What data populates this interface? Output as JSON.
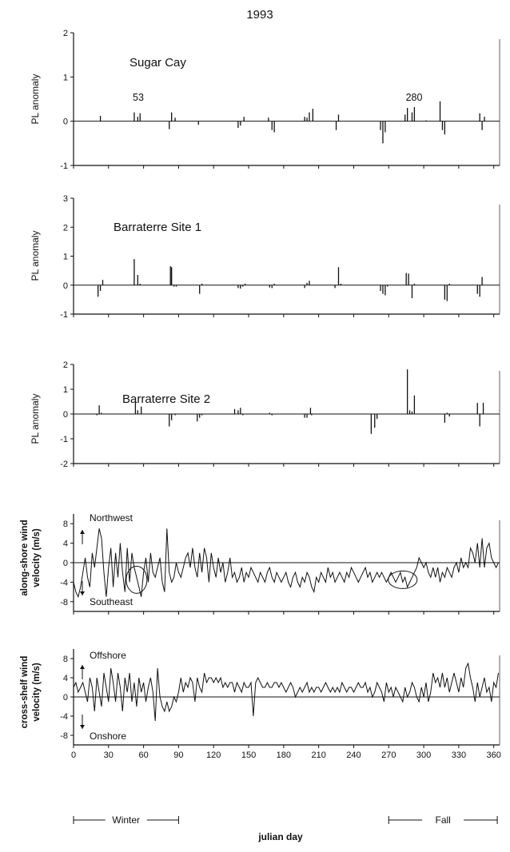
{
  "figure": {
    "title": "1993",
    "x_axis_label": "julian day",
    "x_ticks": [
      0,
      30,
      60,
      90,
      120,
      150,
      180,
      210,
      240,
      270,
      300,
      330,
      360
    ],
    "seasons": [
      {
        "label": "Winter",
        "from": 0,
        "to": 90
      },
      {
        "label": "Fall",
        "from": 270,
        "to": 363
      }
    ]
  },
  "chart_data": [
    {
      "type": "bar",
      "title": "Sugar Cay",
      "ylabel": "PL anomaly",
      "ylim": [
        -1,
        2
      ],
      "yticks": [
        -1,
        0,
        1,
        2
      ],
      "xlim": [
        0,
        365
      ],
      "annotations": [
        {
          "text": "53",
          "x": 53
        },
        {
          "text": "280",
          "x": 288
        }
      ],
      "x": [
        23,
        52,
        55,
        57,
        82,
        84,
        87,
        107,
        141,
        143,
        146,
        167,
        170,
        172,
        198,
        200,
        202,
        205,
        225,
        227,
        263,
        265,
        267,
        284,
        286,
        290,
        292,
        302,
        314,
        316,
        318,
        348,
        350,
        352
      ],
      "values": [
        0.12,
        0.2,
        0.1,
        0.18,
        -0.18,
        0.2,
        0.08,
        -0.08,
        -0.15,
        -0.1,
        0.1,
        0.08,
        -0.2,
        -0.25,
        0.1,
        0.08,
        0.2,
        0.28,
        -0.2,
        0.15,
        -0.2,
        -0.5,
        -0.25,
        0.15,
        0.3,
        0.2,
        0.32,
        0.02,
        0.45,
        -0.2,
        -0.3,
        0.18,
        -0.2,
        0.1
      ]
    },
    {
      "type": "bar",
      "title": "Barraterre Site 1",
      "ylabel": "PL anomaly",
      "ylim": [
        -1,
        3
      ],
      "yticks": [
        -1,
        0,
        1,
        2,
        3
      ],
      "xlim": [
        0,
        365
      ],
      "x": [
        21,
        23,
        25,
        52,
        55,
        57,
        83,
        84,
        86,
        88,
        108,
        110,
        141,
        143,
        145,
        147,
        168,
        170,
        172,
        198,
        200,
        202,
        224,
        227,
        229,
        263,
        265,
        267,
        269,
        285,
        287,
        290,
        292,
        318,
        320,
        322,
        346,
        348,
        350
      ],
      "values": [
        -0.4,
        -0.2,
        0.18,
        0.9,
        0.35,
        0.05,
        0.65,
        0.62,
        -0.05,
        -0.05,
        -0.3,
        0.05,
        -0.1,
        -0.12,
        -0.05,
        0.05,
        -0.08,
        -0.1,
        0.05,
        -0.1,
        0.08,
        0.15,
        -0.1,
        0.62,
        0.05,
        -0.2,
        -0.3,
        -0.35,
        -0.05,
        0.42,
        0.4,
        -0.45,
        0.05,
        -0.5,
        -0.55,
        0.05,
        -0.3,
        -0.4,
        0.28
      ]
    },
    {
      "type": "bar",
      "title": "Barraterre Site 2",
      "ylabel": "PL anomaly",
      "ylim": [
        -2,
        2
      ],
      "yticks": [
        -2,
        -1,
        0,
        1,
        2
      ],
      "xlim": [
        0,
        365
      ],
      "x": [
        20,
        22,
        24,
        53,
        55,
        58,
        82,
        84,
        87,
        106,
        108,
        110,
        138,
        141,
        143,
        145,
        168,
        170,
        198,
        200,
        203,
        204,
        255,
        258,
        260,
        286,
        288,
        290,
        292,
        318,
        320,
        322,
        346,
        348,
        351
      ],
      "values": [
        -0.05,
        0.35,
        0.05,
        0.5,
        0.15,
        0.3,
        -0.5,
        -0.25,
        -0.05,
        -0.3,
        -0.15,
        -0.05,
        0.2,
        0.15,
        0.25,
        -0.05,
        0.05,
        -0.05,
        -0.15,
        -0.15,
        0.25,
        -0.05,
        -0.8,
        -0.55,
        -0.2,
        1.8,
        0.15,
        0.1,
        0.75,
        -0.35,
        0.05,
        -0.1,
        0.45,
        -0.5,
        0.45
      ]
    },
    {
      "type": "line",
      "ylabel_line1": "along-shore wind",
      "ylabel_line2": "velocity (m/s)",
      "ylim": [
        -10,
        10
      ],
      "yticks": [
        -8,
        -4,
        0,
        4,
        8
      ],
      "xlim": [
        0,
        365
      ],
      "upper_label": "Northwest",
      "lower_label": "Southeast",
      "circled_days": [
        54,
        282
      ],
      "x": [
        0,
        2,
        4,
        6,
        8,
        10,
        12,
        14,
        16,
        18,
        20,
        22,
        24,
        26,
        28,
        30,
        32,
        34,
        36,
        38,
        40,
        42,
        44,
        46,
        48,
        50,
        52,
        54,
        56,
        58,
        60,
        62,
        64,
        66,
        68,
        70,
        72,
        74,
        76,
        78,
        80,
        82,
        84,
        86,
        88,
        90,
        92,
        94,
        96,
        98,
        100,
        102,
        104,
        106,
        108,
        110,
        112,
        114,
        116,
        118,
        120,
        122,
        124,
        126,
        128,
        130,
        132,
        134,
        136,
        138,
        140,
        142,
        144,
        146,
        148,
        150,
        152,
        154,
        156,
        158,
        160,
        162,
        164,
        166,
        168,
        170,
        172,
        174,
        176,
        178,
        180,
        182,
        184,
        186,
        188,
        190,
        192,
        194,
        196,
        198,
        200,
        202,
        204,
        206,
        208,
        210,
        212,
        214,
        216,
        218,
        220,
        222,
        224,
        226,
        228,
        230,
        232,
        234,
        236,
        238,
        240,
        242,
        244,
        246,
        248,
        250,
        252,
        254,
        256,
        258,
        260,
        262,
        264,
        266,
        268,
        270,
        272,
        274,
        276,
        278,
        280,
        282,
        284,
        286,
        288,
        290,
        292,
        294,
        296,
        298,
        300,
        302,
        304,
        306,
        308,
        310,
        312,
        314,
        316,
        318,
        320,
        322,
        324,
        326,
        328,
        330,
        332,
        334,
        336,
        338,
        340,
        342,
        344,
        346,
        348,
        350,
        352,
        354,
        356,
        358,
        360,
        362,
        364
      ],
      "values": [
        -4,
        -6,
        -7,
        -5,
        -2,
        1,
        -3,
        -5,
        2,
        -1,
        3,
        7,
        5,
        -2,
        -7,
        -1,
        3,
        -5,
        2,
        -3,
        4,
        -2,
        -6,
        3,
        -4,
        2,
        -1,
        -3,
        -5,
        -7,
        -2,
        1,
        -4,
        2,
        -2,
        -3,
        -1,
        1,
        -4,
        -6,
        7,
        -2,
        -4,
        -3,
        0,
        -2,
        -3,
        -1,
        1,
        2,
        -1,
        3,
        -1,
        -3,
        2,
        -2,
        3,
        1,
        -4,
        2,
        -1,
        -3,
        1,
        -2,
        0,
        -4,
        -2,
        1,
        -3,
        -2,
        -4,
        -3,
        -1,
        -4,
        -2,
        -3,
        -1,
        -2,
        -3,
        -4,
        -2,
        -3,
        -4,
        -2,
        -1,
        -3,
        -4,
        -2,
        -3,
        -4,
        -3,
        -2,
        -4,
        -5,
        -3,
        -2,
        -4,
        -5,
        -3,
        -4,
        -2,
        -3,
        -5,
        -6,
        -3,
        -4,
        -2,
        -3,
        -4,
        -1,
        -3,
        -2,
        -4,
        -3,
        -2,
        -3,
        -4,
        -2,
        -3,
        -1,
        -2,
        -3,
        -4,
        -3,
        -2,
        -1,
        -3,
        -2,
        -4,
        -3,
        -2,
        -3,
        -2,
        -3,
        -4,
        -3,
        -2,
        -3,
        -4,
        -3,
        -2,
        -4,
        -3,
        -5,
        -4,
        -3,
        -2,
        -1,
        1,
        0,
        -1,
        0,
        -2,
        -3,
        -1,
        -3,
        -1,
        -4,
        -2,
        -3,
        -1,
        -2,
        -3,
        -1,
        0,
        -2,
        1,
        -1,
        0,
        -1,
        3,
        2,
        0,
        4,
        -1,
        5,
        -1,
        3,
        4,
        1,
        0,
        -1,
        0
      ]
    },
    {
      "type": "line",
      "ylabel_line1": "cross-shelf wind",
      "ylabel_line2": "velocity (m/s)",
      "ylim": [
        -10,
        10
      ],
      "yticks": [
        -8,
        -4,
        0,
        4,
        8
      ],
      "xlim": [
        0,
        365
      ],
      "upper_label": "Offshore",
      "lower_label": "Onshore",
      "x": [
        0,
        2,
        4,
        6,
        8,
        10,
        12,
        14,
        16,
        18,
        20,
        22,
        24,
        26,
        28,
        30,
        32,
        34,
        36,
        38,
        40,
        42,
        44,
        46,
        48,
        50,
        52,
        54,
        56,
        58,
        60,
        62,
        64,
        66,
        68,
        70,
        72,
        74,
        76,
        78,
        80,
        82,
        84,
        86,
        88,
        90,
        92,
        94,
        96,
        98,
        100,
        102,
        104,
        106,
        108,
        110,
        112,
        114,
        116,
        118,
        120,
        122,
        124,
        126,
        128,
        130,
        132,
        134,
        136,
        138,
        140,
        142,
        144,
        146,
        148,
        150,
        152,
        154,
        156,
        158,
        160,
        162,
        164,
        166,
        168,
        170,
        172,
        174,
        176,
        178,
        180,
        182,
        184,
        186,
        188,
        190,
        192,
        194,
        196,
        198,
        200,
        202,
        204,
        206,
        208,
        210,
        212,
        214,
        216,
        218,
        220,
        222,
        224,
        226,
        228,
        230,
        232,
        234,
        236,
        238,
        240,
        242,
        244,
        246,
        248,
        250,
        252,
        254,
        256,
        258,
        260,
        262,
        264,
        266,
        268,
        270,
        272,
        274,
        276,
        278,
        280,
        282,
        284,
        286,
        288,
        290,
        292,
        294,
        296,
        298,
        300,
        302,
        304,
        306,
        308,
        310,
        312,
        314,
        316,
        318,
        320,
        322,
        324,
        326,
        328,
        330,
        332,
        334,
        336,
        338,
        340,
        342,
        344,
        346,
        348,
        350,
        352,
        354,
        356,
        358,
        360,
        362,
        364
      ],
      "values": [
        2,
        3,
        1,
        2,
        3,
        1,
        -1,
        4,
        2,
        -3,
        4,
        1,
        -2,
        5,
        2,
        -1,
        6,
        3,
        -1,
        5,
        2,
        -3,
        4,
        1,
        5,
        -1,
        3,
        -2,
        4,
        1,
        3,
        -1,
        2,
        4,
        1,
        -5,
        6,
        0,
        -2,
        -3,
        -1,
        -3,
        -2,
        0,
        -1,
        1,
        4,
        1,
        3,
        2,
        4,
        3,
        -1,
        4,
        2,
        1,
        5,
        3,
        4,
        4,
        3,
        4,
        3,
        4,
        2,
        3,
        2,
        3,
        3,
        1,
        3,
        2,
        1,
        3,
        2,
        2,
        3,
        -4,
        3,
        4,
        3,
        2,
        2,
        3,
        2,
        2,
        3,
        3,
        2,
        3,
        2,
        1,
        2,
        3,
        2,
        0,
        1,
        2,
        1,
        2,
        3,
        1,
        2,
        1,
        2,
        2,
        1,
        2,
        3,
        2,
        1,
        2,
        1,
        2,
        1,
        3,
        2,
        1,
        2,
        2,
        1,
        2,
        3,
        2,
        2,
        3,
        1,
        2,
        0,
        1,
        3,
        2,
        1,
        -1,
        3,
        1,
        2,
        0,
        2,
        1,
        0,
        -1,
        2,
        0,
        1,
        3,
        2,
        0,
        -1,
        2,
        0,
        3,
        -1,
        1,
        5,
        3,
        4,
        2,
        5,
        2,
        4,
        1,
        3,
        5,
        3,
        1,
        4,
        2,
        6,
        7,
        4,
        2,
        -1,
        3,
        0,
        2,
        4,
        1,
        2,
        -1,
        3,
        2,
        5
      ]
    }
  ]
}
